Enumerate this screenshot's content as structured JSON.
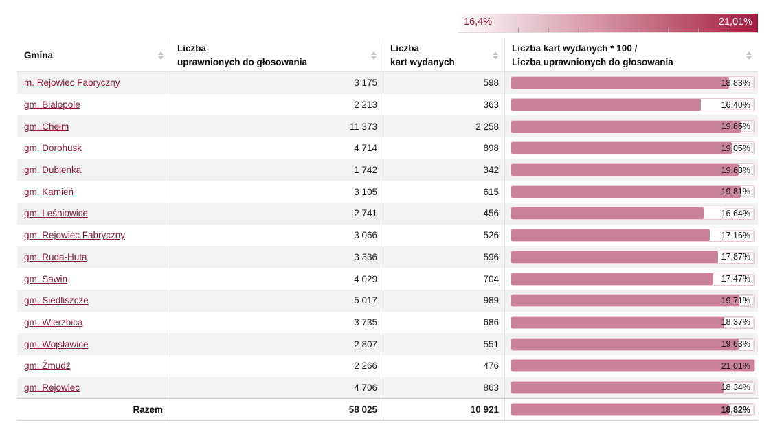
{
  "legend": {
    "min_label": "16,4%",
    "max_label": "21,01%",
    "min_value": 16.4,
    "max_value": 21.01,
    "gradient_start_color": "#fefdfd",
    "gradient_end_color": "#a41e40"
  },
  "colors": {
    "bar_fill": "#c98299",
    "bar_border": "#ecc9d4",
    "link": "#8b1b38",
    "row_stripe": "#f2f2f2"
  },
  "table": {
    "headers": [
      {
        "lines": [
          "Gmina"
        ]
      },
      {
        "lines": [
          "Liczba",
          "uprawnionych do głosowania"
        ]
      },
      {
        "lines": [
          "Liczba",
          "kart wydanych"
        ]
      },
      {
        "lines": [
          "Liczba kart wydanych * 100 /",
          "Liczba uprawnionych do głosowania"
        ]
      }
    ],
    "rows": [
      {
        "gmina": "m. Rejowiec Fabryczny",
        "uprawnieni": "3 175",
        "karty": "598",
        "procent": "18,83%",
        "procent_value": 18.83
      },
      {
        "gmina": "gm. Białopole",
        "uprawnieni": "2 213",
        "karty": "363",
        "procent": "16,40%",
        "procent_value": 16.4
      },
      {
        "gmina": "gm. Chełm",
        "uprawnieni": "11 373",
        "karty": "2 258",
        "procent": "19,85%",
        "procent_value": 19.85
      },
      {
        "gmina": "gm. Dorohusk",
        "uprawnieni": "4 714",
        "karty": "898",
        "procent": "19,05%",
        "procent_value": 19.05
      },
      {
        "gmina": "gm. Dubienka",
        "uprawnieni": "1 742",
        "karty": "342",
        "procent": "19,63%",
        "procent_value": 19.63
      },
      {
        "gmina": "gm. Kamień",
        "uprawnieni": "3 105",
        "karty": "615",
        "procent": "19,81%",
        "procent_value": 19.81
      },
      {
        "gmina": "gm. Leśniowice",
        "uprawnieni": "2 741",
        "karty": "456",
        "procent": "16,64%",
        "procent_value": 16.64
      },
      {
        "gmina": "gm. Rejowiec Fabryczny",
        "uprawnieni": "3 066",
        "karty": "526",
        "procent": "17,16%",
        "procent_value": 17.16
      },
      {
        "gmina": "gm. Ruda-Huta",
        "uprawnieni": "3 336",
        "karty": "596",
        "procent": "17,87%",
        "procent_value": 17.87
      },
      {
        "gmina": "gm. Sawin",
        "uprawnieni": "4 029",
        "karty": "704",
        "procent": "17,47%",
        "procent_value": 17.47
      },
      {
        "gmina": "gm. Siedliszcze",
        "uprawnieni": "5 017",
        "karty": "989",
        "procent": "19,71%",
        "procent_value": 19.71
      },
      {
        "gmina": "gm. Wierzbica",
        "uprawnieni": "3 735",
        "karty": "686",
        "procent": "18,37%",
        "procent_value": 18.37
      },
      {
        "gmina": "gm. Wojsławice",
        "uprawnieni": "2 807",
        "karty": "551",
        "procent": "19,63%",
        "procent_value": 19.63
      },
      {
        "gmina": "gm. Żmudź",
        "uprawnieni": "2 266",
        "karty": "476",
        "procent": "21,01%",
        "procent_value": 21.01
      },
      {
        "gmina": "gm. Rejowiec",
        "uprawnieni": "4 706",
        "karty": "863",
        "procent": "18,34%",
        "procent_value": 18.34
      }
    ],
    "total": {
      "label": "Razem",
      "uprawnieni": "58 025",
      "karty": "10 921",
      "procent": "18,82%",
      "procent_value": 18.82
    }
  },
  "chart_data": {
    "type": "table",
    "title": "",
    "columns": [
      "Gmina",
      "Liczba uprawnionych do głosowania",
      "Liczba kart wydanych",
      "Liczba kart wydanych * 100 / Liczba uprawnionych do głosowania"
    ],
    "rows": [
      [
        "m. Rejowiec Fabryczny",
        3175,
        598,
        18.83
      ],
      [
        "gm. Białopole",
        2213,
        363,
        16.4
      ],
      [
        "gm. Chełm",
        11373,
        2258,
        19.85
      ],
      [
        "gm. Dorohusk",
        4714,
        898,
        19.05
      ],
      [
        "gm. Dubienka",
        1742,
        342,
        19.63
      ],
      [
        "gm. Kamień",
        3105,
        615,
        19.81
      ],
      [
        "gm. Leśniowice",
        2741,
        456,
        16.64
      ],
      [
        "gm. Rejowiec Fabryczny",
        3066,
        526,
        17.16
      ],
      [
        "gm. Ruda-Huta",
        3336,
        596,
        17.87
      ],
      [
        "gm. Sawin",
        4029,
        704,
        17.47
      ],
      [
        "gm. Siedliszcze",
        5017,
        989,
        19.71
      ],
      [
        "gm. Wierzbica",
        3735,
        686,
        18.37
      ],
      [
        "gm. Wojsławice",
        2807,
        551,
        19.63
      ],
      [
        "gm. Żmudź",
        2266,
        476,
        21.01
      ],
      [
        "gm. Rejowiec",
        4706,
        863,
        18.34
      ]
    ],
    "total_row": [
      "Razem",
      58025,
      10921,
      18.82
    ],
    "bar_column": {
      "index": 3,
      "unit": "%",
      "scale_min": 16.4,
      "scale_max": 21.01,
      "fill_relative_to_max": true
    },
    "legend": {
      "position": "top-right",
      "min_label": "16,4%",
      "max_label": "21,01%"
    }
  }
}
